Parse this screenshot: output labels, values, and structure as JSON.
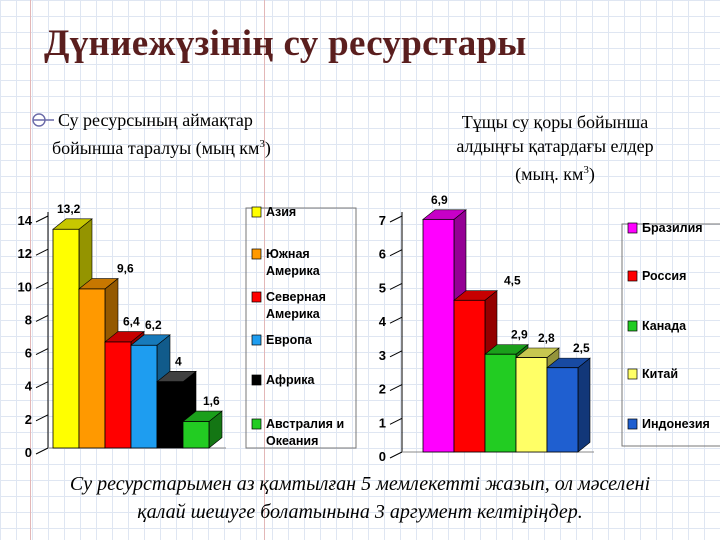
{
  "slide": {
    "title": "Дүниежүзінің су ресурстары",
    "left_subtitle": {
      "line1": "Су ресурсының аймақтар",
      "line2_prefix": "бойынша таралуы (мың  км",
      "sup": "3",
      "line2_suffix": ")"
    },
    "right_subtitle": {
      "line1": "Тұщы су қоры бойынша",
      "line2": "алдыңғы қатардағы елдер",
      "line3_prefix": "(мың. км",
      "sup": "3",
      "line3_suffix": ")"
    },
    "footer": {
      "line1": "Су ресурстарымен аз қамтылған 5 мемлекетті жазып, ол мәселені",
      "line2": "қалай шешуге болатынына 3 аргумент келтіріңдер."
    }
  },
  "chart_data": [
    {
      "type": "bar",
      "title": "Су ресурсының аймақтар бойынша таралуы (мың  км3)",
      "ylim": [
        0,
        14
      ],
      "yticks": [
        0,
        2,
        4,
        6,
        8,
        10,
        12,
        14
      ],
      "grid": false,
      "legend_position": "right",
      "series": [
        {
          "name": "Азия",
          "value": 13.2,
          "label": "13,2",
          "color": "#ffff00"
        },
        {
          "name": "Южная Америка",
          "value": 9.6,
          "label": "9,6",
          "color": "#ff9900"
        },
        {
          "name": "Северная Америка",
          "value": 6.4,
          "label": "6,4",
          "color": "#ff0000"
        },
        {
          "name": "Европа",
          "value": 6.2,
          "label": "6,2",
          "color": "#1e9df0"
        },
        {
          "name": "Африка",
          "value": 4,
          "label": "4",
          "color": "#000000"
        },
        {
          "name": "Австралия и Океания",
          "value": 1.6,
          "label": "1,6",
          "color": "#22cc22"
        }
      ]
    },
    {
      "type": "bar",
      "title": "Тұщы су қоры бойынша алдыңғы қатардағы елдер (мың. км3)",
      "ylim": [
        0,
        7
      ],
      "yticks": [
        0,
        1,
        2,
        3,
        4,
        5,
        6,
        7
      ],
      "grid": false,
      "legend_position": "right",
      "series": [
        {
          "name": "Бразилия",
          "value": 6.9,
          "label": "6,9",
          "color": "#ff00ff"
        },
        {
          "name": "Россия",
          "value": 4.5,
          "label": "4,5",
          "color": "#ff0000"
        },
        {
          "name": "Канада",
          "value": 2.9,
          "label": "2,9",
          "color": "#22cc22"
        },
        {
          "name": "Китай",
          "value": 2.8,
          "label": "2,8",
          "color": "#ffff66"
        },
        {
          "name": "Индонезия",
          "value": 2.5,
          "label": "2,5",
          "color": "#1f5fd0"
        }
      ]
    }
  ]
}
